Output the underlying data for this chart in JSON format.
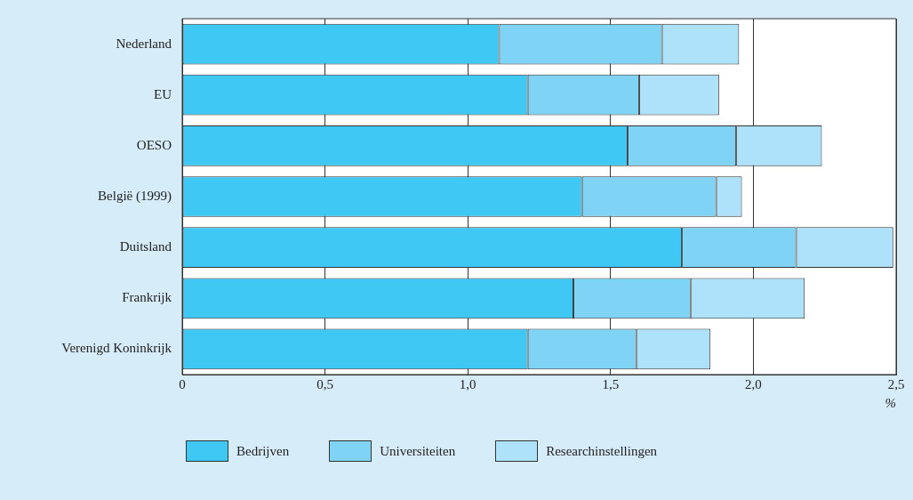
{
  "chart_data": {
    "type": "bar",
    "orientation": "horizontal",
    "stacked": true,
    "categories": [
      "Nederland",
      "EU",
      "OESO",
      "België (1999)",
      "Duitsland",
      "Frankrijk",
      "Verenigd Koninkrijk"
    ],
    "series": [
      {
        "name": "Bedrijven",
        "color": "#40c8f4",
        "values": [
          1.11,
          1.21,
          1.56,
          1.4,
          1.75,
          1.37,
          1.21
        ]
      },
      {
        "name": "Universiteiten",
        "color": "#7fd3f5",
        "values": [
          0.57,
          0.39,
          0.38,
          0.47,
          0.4,
          0.41,
          0.38
        ]
      },
      {
        "name": "Researchinstellingen",
        "color": "#aee1fa",
        "values": [
          0.27,
          0.28,
          0.3,
          0.09,
          0.34,
          0.4,
          0.26
        ]
      }
    ],
    "xlabel": "%",
    "xlim": [
      0,
      2.5
    ],
    "xticks": [
      0,
      {
        "value": 0.5,
        "label": "0,5"
      },
      {
        "value": 1,
        "label": "1,0"
      },
      {
        "value": 1.5,
        "label": "1,5"
      },
      {
        "value": 2,
        "label": "2,0"
      },
      {
        "value": 2.5,
        "label": "2,5"
      }
    ],
    "grid": "x",
    "legend": "bottom"
  }
}
